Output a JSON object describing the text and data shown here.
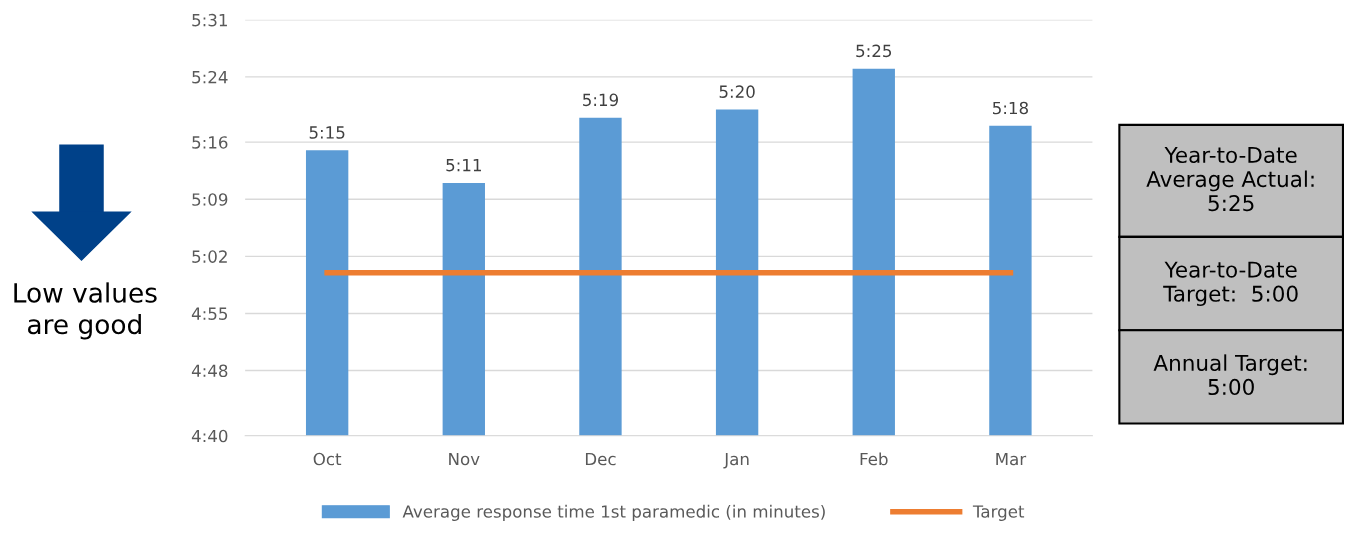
{
  "chart_data": {
    "type": "bar",
    "categories": [
      "Oct",
      "Nov",
      "Dec",
      "Jan",
      "Feb",
      "Mar"
    ],
    "series": [
      {
        "name": "Average response time 1st paramedic (in minutes)",
        "color": "#5b9bd5",
        "values": [
          315,
          311,
          319,
          320,
          325,
          318
        ],
        "value_labels": [
          "5:15",
          "5:11",
          "5:19",
          "5:20",
          "5:25",
          "5:18"
        ]
      },
      {
        "name": "Target",
        "type": "line",
        "color": "#ed7d31",
        "values": [
          300,
          300,
          300,
          300,
          300,
          300
        ]
      }
    ],
    "ylim": [
      280,
      331
    ],
    "yticks": [
      {
        "value": 280,
        "label": "4:40"
      },
      {
        "value": 288,
        "label": "4:48"
      },
      {
        "value": 295,
        "label": "4:55"
      },
      {
        "value": 302,
        "label": "5:02"
      },
      {
        "value": 309,
        "label": "5:09"
      },
      {
        "value": 316,
        "label": "5:16"
      },
      {
        "value": 324,
        "label": "5:24"
      },
      {
        "value": 331,
        "label": "5:31"
      }
    ],
    "grid": "y",
    "legend": "bottom",
    "marker": "none",
    "line_style": "solid",
    "annotations": [
      "Low values\nare good",
      "Year-to-Date\nAverage Actual:\n5:25",
      "Year-to-Date\nTarget:  5:00",
      "Annual Target:\n5:00"
    ]
  }
}
